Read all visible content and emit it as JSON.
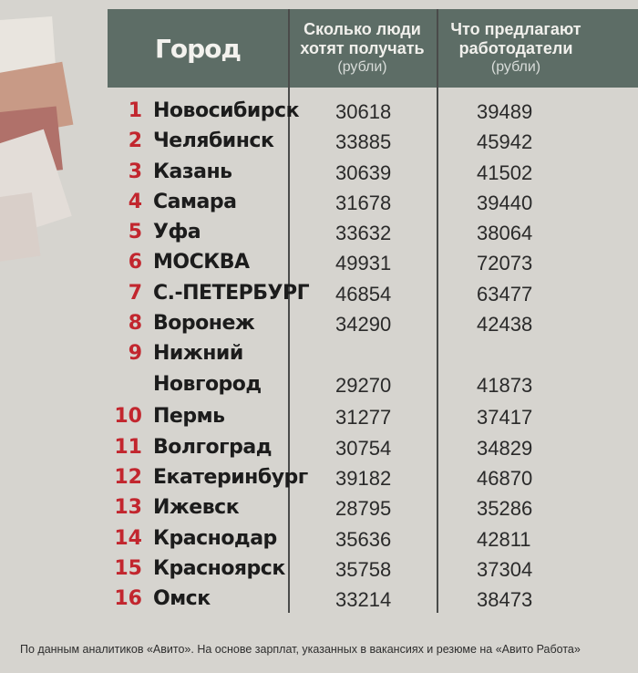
{
  "header": {
    "city": "Город",
    "want_line1": "Сколько люди",
    "want_line2": "хотят получать",
    "want_unit": "(рубли)",
    "offer_line1": "Что предлагают",
    "offer_line2": "работодатели",
    "offer_unit": "(рубли)"
  },
  "rows": [
    {
      "rank": "1",
      "city": "Новосибирск",
      "want": "30618",
      "offer": "39489"
    },
    {
      "rank": "2",
      "city": "Челябинск",
      "want": "33885",
      "offer": "45942"
    },
    {
      "rank": "3",
      "city": "Казань",
      "want": "30639",
      "offer": "41502"
    },
    {
      "rank": "4",
      "city": "Самара",
      "want": "31678",
      "offer": "39440"
    },
    {
      "rank": "5",
      "city": "Уфа",
      "want": "33632",
      "offer": "38064"
    },
    {
      "rank": "6",
      "city": "МОСКВА",
      "want": "49931",
      "offer": "72073"
    },
    {
      "rank": "7",
      "city": "С.-ПЕТЕРБУРГ",
      "want": "46854",
      "offer": "63477"
    },
    {
      "rank": "8",
      "city": "Воронеж",
      "want": "34290",
      "offer": "42438"
    },
    {
      "rank": "9",
      "city": "Нижний",
      "city2": "Новгород",
      "want": "29270",
      "offer": "41873"
    },
    {
      "rank": "10",
      "city": "Пермь",
      "want": "31277",
      "offer": "37417"
    },
    {
      "rank": "11",
      "city": "Волгоград",
      "want": "30754",
      "offer": "34829"
    },
    {
      "rank": "12",
      "city": "Екатеринбург",
      "want": "39182",
      "offer": "46870"
    },
    {
      "rank": "13",
      "city": "Ижевск",
      "want": "28795",
      "offer": "35286"
    },
    {
      "rank": "14",
      "city": "Краснодар",
      "want": "35636",
      "offer": "42811"
    },
    {
      "rank": "15",
      "city": "Красноярск",
      "want": "35758",
      "offer": "37304"
    },
    {
      "rank": "16",
      "city": "Омск",
      "want": "33214",
      "offer": "38473"
    }
  ],
  "footnote": "По данным аналитиков «Авито». На основе зарплат, указанных в вакансиях и резюме на «Авито Работа»",
  "colors": {
    "header_bg": "#5d6d66",
    "rank_red": "#c2262e",
    "paper": "#d6d4cf"
  }
}
